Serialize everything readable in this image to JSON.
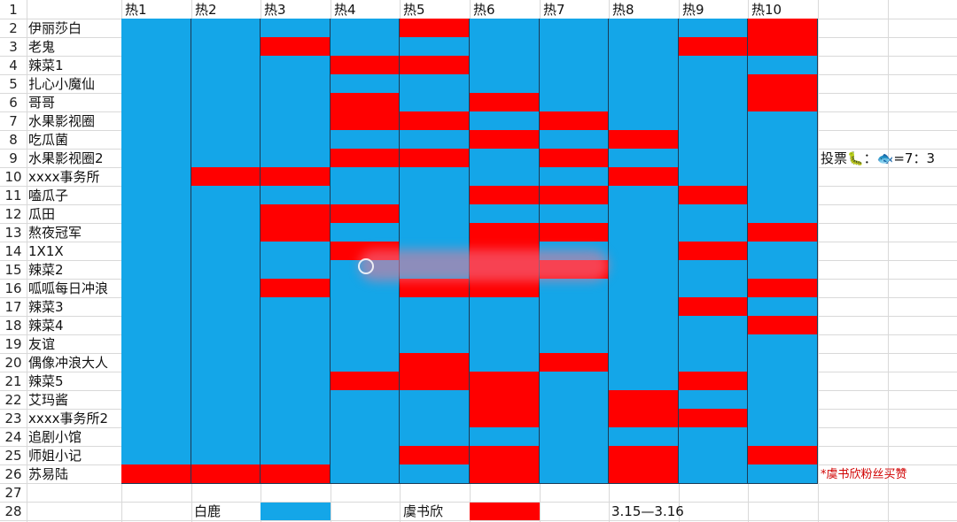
{
  "columns": [
    "热1",
    "热2",
    "热3",
    "热4",
    "热5",
    "热6",
    "热7",
    "热8",
    "热9",
    "热10"
  ],
  "row_numbers": [
    "1",
    "2",
    "3",
    "4",
    "5",
    "6",
    "7",
    "8",
    "9",
    "10",
    "11",
    "12",
    "13",
    "14",
    "15",
    "16",
    "17",
    "18",
    "19",
    "20",
    "21",
    "22",
    "23",
    "24",
    "25",
    "26",
    "27",
    "28"
  ],
  "rows": [
    {
      "name": "伊丽莎白",
      "cells": [
        "B",
        "B",
        "B",
        "B",
        "R",
        "B",
        "B",
        "B",
        "B",
        "R"
      ]
    },
    {
      "name": "老鬼",
      "cells": [
        "B",
        "B",
        "R",
        "B",
        "B",
        "B",
        "B",
        "B",
        "R",
        "R"
      ]
    },
    {
      "name": "辣菜1",
      "cells": [
        "B",
        "B",
        "B",
        "R",
        "R",
        "B",
        "B",
        "B",
        "B",
        "B"
      ]
    },
    {
      "name": "扎心小魔仙",
      "cells": [
        "B",
        "B",
        "B",
        "B",
        "B",
        "B",
        "B",
        "B",
        "B",
        "R"
      ]
    },
    {
      "name": "哥哥",
      "cells": [
        "B",
        "B",
        "B",
        "R",
        "B",
        "R",
        "B",
        "B",
        "B",
        "R"
      ]
    },
    {
      "name": "水果影视圈",
      "cells": [
        "B",
        "B",
        "B",
        "R",
        "R",
        "B",
        "R",
        "B",
        "B",
        "B"
      ]
    },
    {
      "name": "吃瓜菌",
      "cells": [
        "B",
        "B",
        "B",
        "B",
        "B",
        "R",
        "B",
        "R",
        "B",
        "B"
      ]
    },
    {
      "name": "水果影视圈2",
      "cells": [
        "B",
        "B",
        "B",
        "R",
        "R",
        "B",
        "R",
        "B",
        "B",
        "B"
      ]
    },
    {
      "name": "xxxx事务所",
      "cells": [
        "B",
        "R",
        "R",
        "B",
        "B",
        "B",
        "B",
        "R",
        "B",
        "B"
      ]
    },
    {
      "name": "嗑瓜子",
      "cells": [
        "B",
        "B",
        "B",
        "B",
        "B",
        "R",
        "R",
        "B",
        "R",
        "B"
      ]
    },
    {
      "name": "瓜田",
      "cells": [
        "B",
        "B",
        "R",
        "R",
        "B",
        "B",
        "B",
        "B",
        "B",
        "B"
      ]
    },
    {
      "name": "熬夜冠军",
      "cells": [
        "B",
        "B",
        "R",
        "B",
        "B",
        "R",
        "R",
        "B",
        "B",
        "R"
      ]
    },
    {
      "name": "1X1X",
      "cells": [
        "B",
        "B",
        "B",
        "R",
        "B",
        "R",
        "B",
        "B",
        "R",
        "B"
      ]
    },
    {
      "name": "辣菜2",
      "cells": [
        "B",
        "B",
        "B",
        "B",
        "B",
        "R",
        "R",
        "B",
        "B",
        "B"
      ]
    },
    {
      "name": "呱呱每日冲浪",
      "cells": [
        "B",
        "B",
        "R",
        "B",
        "R",
        "R",
        "B",
        "B",
        "B",
        "R"
      ]
    },
    {
      "name": "辣菜3",
      "cells": [
        "B",
        "B",
        "B",
        "B",
        "B",
        "B",
        "B",
        "B",
        "R",
        "B"
      ]
    },
    {
      "name": "辣菜4",
      "cells": [
        "B",
        "B",
        "B",
        "B",
        "B",
        "B",
        "B",
        "B",
        "B",
        "R"
      ]
    },
    {
      "name": "友谊",
      "cells": [
        "B",
        "B",
        "B",
        "B",
        "B",
        "B",
        "B",
        "B",
        "B",
        "B"
      ]
    },
    {
      "name": "偶像冲浪大人",
      "cells": [
        "B",
        "B",
        "B",
        "B",
        "R",
        "B",
        "R",
        "B",
        "B",
        "B"
      ]
    },
    {
      "name": "辣菜5",
      "cells": [
        "B",
        "B",
        "B",
        "R",
        "R",
        "R",
        "B",
        "B",
        "R",
        "B"
      ]
    },
    {
      "name": "艾玛酱",
      "cells": [
        "B",
        "B",
        "B",
        "B",
        "B",
        "R",
        "B",
        "R",
        "B",
        "B"
      ]
    },
    {
      "name": "xxxx事务所2",
      "cells": [
        "B",
        "B",
        "B",
        "B",
        "B",
        "R",
        "B",
        "R",
        "R",
        "B"
      ]
    },
    {
      "name": "追剧小馆",
      "cells": [
        "B",
        "B",
        "B",
        "B",
        "B",
        "B",
        "B",
        "B",
        "B",
        "B"
      ]
    },
    {
      "name": "师姐小记",
      "cells": [
        "B",
        "B",
        "B",
        "B",
        "R",
        "R",
        "B",
        "R",
        "B",
        "R"
      ]
    },
    {
      "name": "苏易陆",
      "cells": [
        "R",
        "R",
        "R",
        "B",
        "B",
        "R",
        "B",
        "R",
        "B",
        "B"
      ]
    }
  ],
  "side_notes": {
    "vote": "投票🐛：🐟=7：3",
    "fan_note": "*虞书欣粉丝买赞"
  },
  "legend": {
    "a_label": "白鹿",
    "b_label": "虞书欣",
    "date": "3.15—3.16"
  },
  "colors": {
    "B": "#14a6e8",
    "R": "#ff0000",
    "grid": "#d9d9d9",
    "border": "#1a3b57"
  }
}
